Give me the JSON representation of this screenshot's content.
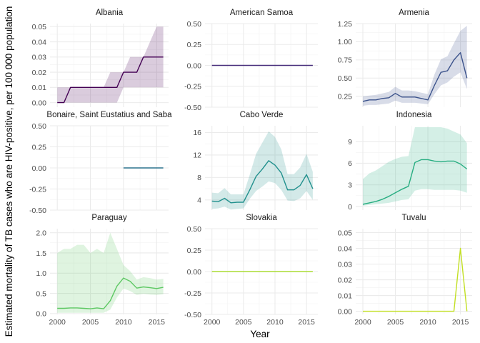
{
  "chart_data": {
    "type": "line",
    "facet": true,
    "ylabel": "Estimated mortality of TB cases who are HIV-positive, per 100 000 population",
    "xlabel": "Year",
    "x_ticks": [
      2000,
      2005,
      2010,
      2015
    ],
    "x_range": [
      2000,
      2016
    ],
    "grid": true,
    "panels": [
      {
        "title": "Albania",
        "color": "#440154",
        "y_ticks": [
          0.0,
          0.01,
          0.02,
          0.03,
          0.04,
          0.05
        ],
        "tick_decimals": 2,
        "ylim": [
          -0.003,
          0.052
        ],
        "x": [
          2000,
          2001,
          2002,
          2003,
          2004,
          2005,
          2006,
          2007,
          2008,
          2009,
          2010,
          2011,
          2012,
          2013,
          2014,
          2015,
          2016
        ],
        "y": [
          0,
          0,
          0.01,
          0.01,
          0.01,
          0.01,
          0.01,
          0.01,
          0.01,
          0.01,
          0.02,
          0.02,
          0.02,
          0.03,
          0.03,
          0.03,
          0.03
        ],
        "lo": [
          0,
          0,
          0,
          0,
          0,
          0,
          0,
          0,
          0,
          0,
          0.01,
          0.01,
          0.01,
          0.01,
          0.01,
          0.01,
          0.01
        ],
        "hi": [
          0.01,
          0.01,
          0.01,
          0.01,
          0.01,
          0.01,
          0.01,
          0.01,
          0.02,
          0.02,
          0.02,
          0.03,
          0.03,
          0.03,
          0.04,
          0.05,
          0.05
        ]
      },
      {
        "title": "American Samoa",
        "color": "#472d7b",
        "y_ticks": [
          -0.5,
          -0.25,
          0.0,
          0.25,
          0.5
        ],
        "tick_decimals": 2,
        "ylim": [
          -0.5,
          0.5
        ],
        "x": [
          2000,
          2016
        ],
        "y": [
          0,
          0
        ]
      },
      {
        "title": "Armenia",
        "color": "#3b528b",
        "y_ticks": [
          0.25,
          0.5,
          0.75,
          1.0,
          1.25
        ],
        "tick_decimals": 2,
        "ylim": [
          0.1,
          1.25
        ],
        "x": [
          2000,
          2001,
          2002,
          2003,
          2004,
          2005,
          2006,
          2007,
          2008,
          2009,
          2010,
          2011,
          2012,
          2013,
          2014,
          2015,
          2016
        ],
        "y": [
          0.18,
          0.2,
          0.2,
          0.22,
          0.23,
          0.29,
          0.24,
          0.24,
          0.24,
          0.22,
          0.2,
          0.4,
          0.58,
          0.6,
          0.75,
          0.85,
          0.5
        ],
        "lo": [
          0.12,
          0.13,
          0.13,
          0.14,
          0.15,
          0.19,
          0.16,
          0.16,
          0.16,
          0.15,
          0.14,
          0.28,
          0.4,
          0.44,
          0.52,
          0.58,
          0.35
        ],
        "hi": [
          0.25,
          0.26,
          0.27,
          0.29,
          0.31,
          0.38,
          0.33,
          0.33,
          0.32,
          0.3,
          0.28,
          0.55,
          0.76,
          0.8,
          0.98,
          1.15,
          1.22
        ]
      },
      {
        "title": "Bonaire, Saint Eustatius and Saba",
        "color": "#2c728e",
        "y_ticks": [
          -0.5,
          -0.25,
          0.0,
          0.25,
          0.5
        ],
        "tick_decimals": 2,
        "ylim": [
          -0.5,
          0.5
        ],
        "x": [
          2010,
          2016
        ],
        "y": [
          0,
          0
        ]
      },
      {
        "title": "Cabo Verde",
        "color": "#21908d",
        "y_ticks": [
          4,
          8,
          12,
          16
        ],
        "tick_decimals": 0,
        "ylim": [
          2.2,
          17.2
        ],
        "x": [
          2000,
          2001,
          2002,
          2003,
          2004,
          2005,
          2006,
          2007,
          2008,
          2009,
          2010,
          2011,
          2012,
          2013,
          2014,
          2015,
          2016
        ],
        "y": [
          3.8,
          3.7,
          4.3,
          3.5,
          3.6,
          3.6,
          5.8,
          8.2,
          9.5,
          11.0,
          10.2,
          8.8,
          5.8,
          5.8,
          6.6,
          8.5,
          6.0
        ],
        "lo": [
          2.4,
          2.5,
          2.8,
          2.3,
          2.4,
          2.5,
          4.2,
          5.6,
          6.4,
          7.3,
          7.0,
          5.8,
          3.9,
          3.8,
          4.3,
          5.6,
          4.0
        ],
        "hi": [
          5.3,
          5.2,
          6.1,
          5.0,
          5.0,
          5.0,
          8.5,
          12.2,
          14.2,
          16.2,
          15.2,
          13.0,
          8.6,
          8.6,
          9.8,
          12.2,
          9.0
        ]
      },
      {
        "title": "Indonesia",
        "color": "#27ad81",
        "y_ticks": [
          0,
          3,
          6,
          9
        ],
        "tick_decimals": 0,
        "ylim": [
          -0.5,
          11.2
        ],
        "x": [
          2000,
          2001,
          2002,
          2003,
          2004,
          2005,
          2006,
          2007,
          2008,
          2009,
          2010,
          2011,
          2012,
          2013,
          2014,
          2015,
          2016
        ],
        "y": [
          0.3,
          0.5,
          0.7,
          1.0,
          1.4,
          1.9,
          2.4,
          2.8,
          6.1,
          6.5,
          6.5,
          6.3,
          6.2,
          6.3,
          6.3,
          5.9,
          5.2
        ],
        "lo": [
          0.1,
          0.2,
          0.3,
          0.4,
          0.5,
          0.7,
          0.9,
          1.0,
          2.2,
          2.4,
          2.4,
          2.3,
          2.3,
          2.3,
          2.3,
          2.2,
          1.9
        ],
        "hi": [
          3.8,
          4.6,
          5.0,
          5.6,
          6.2,
          6.6,
          6.9,
          7.0,
          11.0,
          11.0,
          11.0,
          11.0,
          11.0,
          10.8,
          10.4,
          10.0,
          8.8
        ]
      },
      {
        "title": "Paraguay",
        "color": "#5dc863",
        "y_ticks": [
          0.0,
          0.5,
          1.0,
          1.5,
          2.0
        ],
        "tick_decimals": 1,
        "ylim": [
          -0.02,
          2.1
        ],
        "x": [
          2000,
          2001,
          2002,
          2003,
          2004,
          2005,
          2006,
          2007,
          2008,
          2009,
          2010,
          2011,
          2012,
          2013,
          2014,
          2015,
          2016
        ],
        "y": [
          0.13,
          0.13,
          0.14,
          0.14,
          0.13,
          0.12,
          0.14,
          0.12,
          0.32,
          0.68,
          0.88,
          0.8,
          0.63,
          0.66,
          0.64,
          0.62,
          0.65
        ],
        "lo": [
          0.02,
          0.02,
          0.02,
          0.02,
          0.02,
          0.02,
          0.02,
          0.02,
          0.1,
          0.4,
          0.62,
          0.56,
          0.46,
          0.49,
          0.47,
          0.46,
          0.48
        ],
        "hi": [
          1.5,
          1.6,
          1.6,
          1.7,
          1.7,
          1.5,
          1.6,
          1.5,
          2.0,
          1.6,
          1.2,
          1.05,
          0.84,
          0.9,
          0.88,
          0.84,
          0.86
        ]
      },
      {
        "title": "Slovakia",
        "color": "#aadc32",
        "y_ticks": [
          -0.5,
          -0.25,
          0.0,
          0.25,
          0.5
        ],
        "tick_decimals": 2,
        "ylim": [
          -0.5,
          0.5
        ],
        "x": [
          2000,
          2016
        ],
        "y": [
          0,
          0
        ]
      },
      {
        "title": "Tuvalu",
        "color": "#c2df23",
        "y_ticks": [
          0.0,
          0.01,
          0.02,
          0.03,
          0.04,
          0.05
        ],
        "tick_decimals": 2,
        "ylim": [
          -0.002,
          0.0525
        ],
        "x": [
          2000,
          2001,
          2002,
          2003,
          2004,
          2005,
          2006,
          2007,
          2008,
          2009,
          2010,
          2011,
          2012,
          2013,
          2014,
          2015,
          2016
        ],
        "y": [
          0,
          0,
          0,
          0,
          0,
          0,
          0,
          0,
          0,
          0,
          0,
          0,
          0,
          0,
          0,
          0.04,
          0
        ]
      }
    ]
  }
}
